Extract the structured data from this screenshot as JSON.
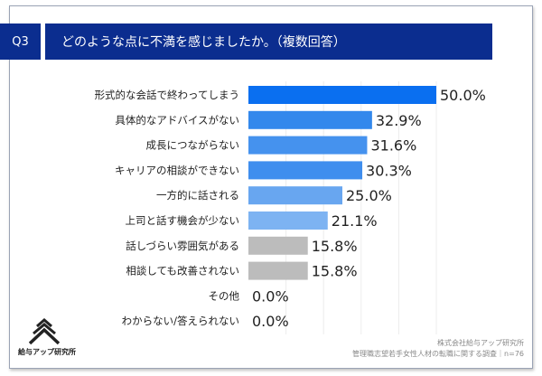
{
  "header": {
    "question_number": "Q3",
    "title": "どのような点に不満を感じましたか。（複数回答）"
  },
  "chart_data": {
    "type": "bar",
    "orientation": "horizontal",
    "categories": [
      "形式的な会話で終わってしまう",
      "具体的なアドバイスがない",
      "成長につながらない",
      "キャリアの相談ができない",
      "一方的に話される",
      "上司と話す機会が少ない",
      "話しづらい雰囲気がある",
      "相談しても改善されない",
      "その他",
      "わからない/答えられない"
    ],
    "values": [
      50.0,
      32.9,
      31.6,
      30.3,
      25.0,
      21.1,
      15.8,
      15.8,
      0.0,
      0.0
    ],
    "value_labels": [
      "50.0%",
      "32.9%",
      "31.6%",
      "30.3%",
      "25.0%",
      "21.1%",
      "15.8%",
      "15.8%",
      "0.0%",
      "0.0%"
    ],
    "colors": [
      "#0a6ff0",
      "#3388ec",
      "#4592ee",
      "#3f8eee",
      "#68a6f0",
      "#7db3f2",
      "#bcbcbc",
      "#bcbcbc",
      "#bcbcbc",
      "#bcbcbc"
    ],
    "xlim": [
      0,
      100
    ],
    "grid": true
  },
  "footer": {
    "logo_text": "給与アップ研究所",
    "company": "株式会社給与アップ研究所",
    "survey": "管理職志望若手女性人材の転職に関する調査｜n=76"
  }
}
